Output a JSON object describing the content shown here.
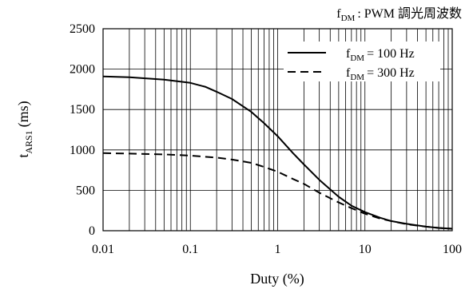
{
  "chart_data": {
    "type": "line",
    "title": "",
    "note": {
      "symbol": "f",
      "subscript": "DM",
      "text": ": PWM 調光周波数"
    },
    "xlabel": "Duty (%)",
    "ylabel": {
      "base": "t",
      "subscript": "ARS1",
      "unit": "(ms)"
    },
    "x_scale": "log",
    "xlim": [
      0.01,
      100
    ],
    "ylim": [
      0,
      2500
    ],
    "x_ticks": [
      {
        "value": 0.01,
        "label": "0.01"
      },
      {
        "value": 0.1,
        "label": "0.1"
      },
      {
        "value": 1,
        "label": "1"
      },
      {
        "value": 10,
        "label": "10"
      },
      {
        "value": 100,
        "label": "100"
      }
    ],
    "y_ticks": [
      {
        "value": 0,
        "label": "0"
      },
      {
        "value": 500,
        "label": "500"
      },
      {
        "value": 1000,
        "label": "1000"
      },
      {
        "value": 1500,
        "label": "1500"
      },
      {
        "value": 2000,
        "label": "2000"
      },
      {
        "value": 2500,
        "label": "2500"
      }
    ],
    "grid": {
      "x": "log-minor",
      "y": "major"
    },
    "legend_position": "top-right",
    "series": [
      {
        "name": {
          "symbol": "f",
          "subscript": "DM",
          "value": "= 100 Hz"
        },
        "line_style": "solid",
        "color": "#000000",
        "x": [
          0.01,
          0.02,
          0.05,
          0.1,
          0.15,
          0.2,
          0.3,
          0.5,
          0.7,
          1,
          1.5,
          2,
          3,
          5,
          7,
          10,
          15,
          20,
          30,
          50,
          70,
          100
        ],
        "y": [
          1910,
          1900,
          1870,
          1830,
          1780,
          1720,
          1630,
          1470,
          1330,
          1170,
          960,
          820,
          630,
          420,
          310,
          230,
          160,
          120,
          85,
          50,
          35,
          25
        ]
      },
      {
        "name": {
          "symbol": "f",
          "subscript": "DM",
          "value": "= 300 Hz"
        },
        "line_style": "dashed",
        "color": "#000000",
        "x": [
          0.01,
          0.02,
          0.05,
          0.1,
          0.2,
          0.3,
          0.5,
          0.7,
          1,
          1.5,
          2,
          3,
          5,
          7,
          10,
          15,
          20,
          30,
          50,
          70,
          100
        ],
        "y": [
          960,
          955,
          945,
          930,
          905,
          880,
          840,
          790,
          730,
          640,
          580,
          470,
          350,
          280,
          210,
          150,
          120,
          80,
          50,
          35,
          25
        ]
      }
    ]
  }
}
